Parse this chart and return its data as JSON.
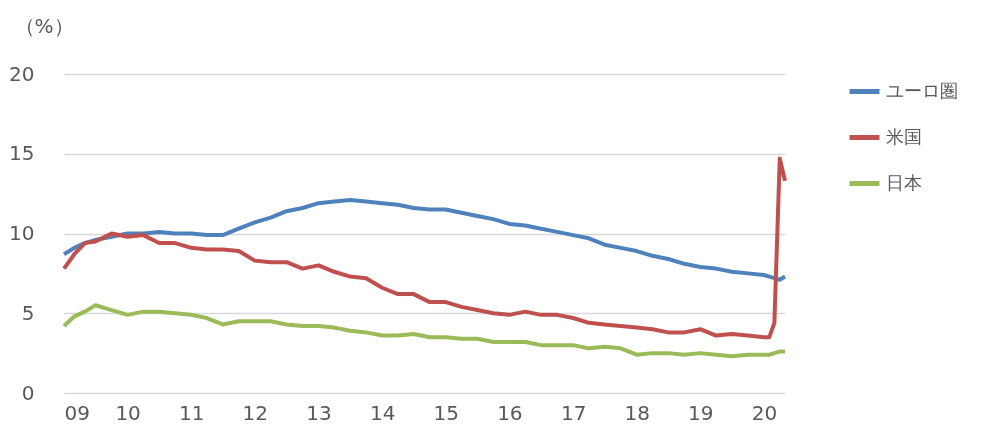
{
  "chart_data": {
    "type": "line",
    "ylabel": "（%）",
    "x": [
      "2009-01",
      "2009-03",
      "2009-05",
      "2009-07",
      "2009-10",
      "2010-01",
      "2010-04",
      "2010-07",
      "2010-10",
      "2011-01",
      "2011-04",
      "2011-07",
      "2011-10",
      "2012-01",
      "2012-04",
      "2012-07",
      "2012-10",
      "2013-01",
      "2013-04",
      "2013-07",
      "2013-10",
      "2014-01",
      "2014-04",
      "2014-07",
      "2014-10",
      "2015-01",
      "2015-04",
      "2015-07",
      "2015-10",
      "2016-01",
      "2016-04",
      "2016-07",
      "2016-10",
      "2017-01",
      "2017-04",
      "2017-07",
      "2017-10",
      "2018-01",
      "2018-04",
      "2018-07",
      "2018-10",
      "2019-01",
      "2019-04",
      "2019-07",
      "2019-10",
      "2020-01",
      "2020-02",
      "2020-03",
      "2020-04",
      "2020-05"
    ],
    "series": [
      {
        "name": "ユーロ圏",
        "color": "#4f81bd",
        "values": [
          8.7,
          9.1,
          9.4,
          9.6,
          9.8,
          10.0,
          10.0,
          10.1,
          10.0,
          10.0,
          9.9,
          9.9,
          10.3,
          10.7,
          11.0,
          11.4,
          11.6,
          11.9,
          12.0,
          12.1,
          12.0,
          11.9,
          11.8,
          11.6,
          11.5,
          11.5,
          11.3,
          11.1,
          10.9,
          10.6,
          10.5,
          10.3,
          10.1,
          9.9,
          9.7,
          9.3,
          9.1,
          8.9,
          8.6,
          8.4,
          8.1,
          7.9,
          7.8,
          7.6,
          7.5,
          7.4,
          7.3,
          7.2,
          7.1,
          7.3
        ]
      },
      {
        "name": "米国",
        "color": "#c0504d",
        "values": [
          7.8,
          8.7,
          9.4,
          9.5,
          10.0,
          9.8,
          9.9,
          9.4,
          9.4,
          9.1,
          9.0,
          9.0,
          8.9,
          8.3,
          8.2,
          8.2,
          7.8,
          8.0,
          7.6,
          7.3,
          7.2,
          6.6,
          6.2,
          6.2,
          5.7,
          5.7,
          5.4,
          5.2,
          5.0,
          4.9,
          5.1,
          4.9,
          4.9,
          4.7,
          4.4,
          4.3,
          4.2,
          4.1,
          4.0,
          3.8,
          3.8,
          4.0,
          3.6,
          3.7,
          3.6,
          3.5,
          3.5,
          4.4,
          14.7,
          13.3
        ]
      },
      {
        "name": "日本",
        "color": "#9bbb59",
        "values": [
          4.2,
          4.8,
          5.1,
          5.5,
          5.2,
          4.9,
          5.1,
          5.1,
          5.0,
          4.9,
          4.7,
          4.3,
          4.5,
          4.5,
          4.5,
          4.3,
          4.2,
          4.2,
          4.1,
          3.9,
          3.8,
          3.6,
          3.6,
          3.7,
          3.5,
          3.5,
          3.4,
          3.4,
          3.2,
          3.2,
          3.2,
          3.0,
          3.0,
          3.0,
          2.8,
          2.9,
          2.8,
          2.4,
          2.5,
          2.5,
          2.4,
          2.5,
          2.4,
          2.3,
          2.4,
          2.4,
          2.4,
          2.5,
          2.6,
          2.6
        ]
      }
    ],
    "xlim": [
      "2009-01",
      "2020-05"
    ],
    "xticks": [
      {
        "value": "2009-01",
        "label": "09"
      },
      {
        "value": "2010-01",
        "label": "10"
      },
      {
        "value": "2011-01",
        "label": "11"
      },
      {
        "value": "2012-01",
        "label": "12"
      },
      {
        "value": "2013-01",
        "label": "13"
      },
      {
        "value": "2014-01",
        "label": "14"
      },
      {
        "value": "2015-01",
        "label": "15"
      },
      {
        "value": "2016-01",
        "label": "16"
      },
      {
        "value": "2017-01",
        "label": "17"
      },
      {
        "value": "2018-01",
        "label": "18"
      },
      {
        "value": "2019-01",
        "label": "19"
      },
      {
        "value": "2020-01",
        "label": "20"
      }
    ],
    "ylim": [
      0,
      20
    ],
    "yticks": [
      0,
      5,
      10,
      15,
      20
    ],
    "grid": "y",
    "legend": "right",
    "marker": "none",
    "line_style": "solid"
  }
}
